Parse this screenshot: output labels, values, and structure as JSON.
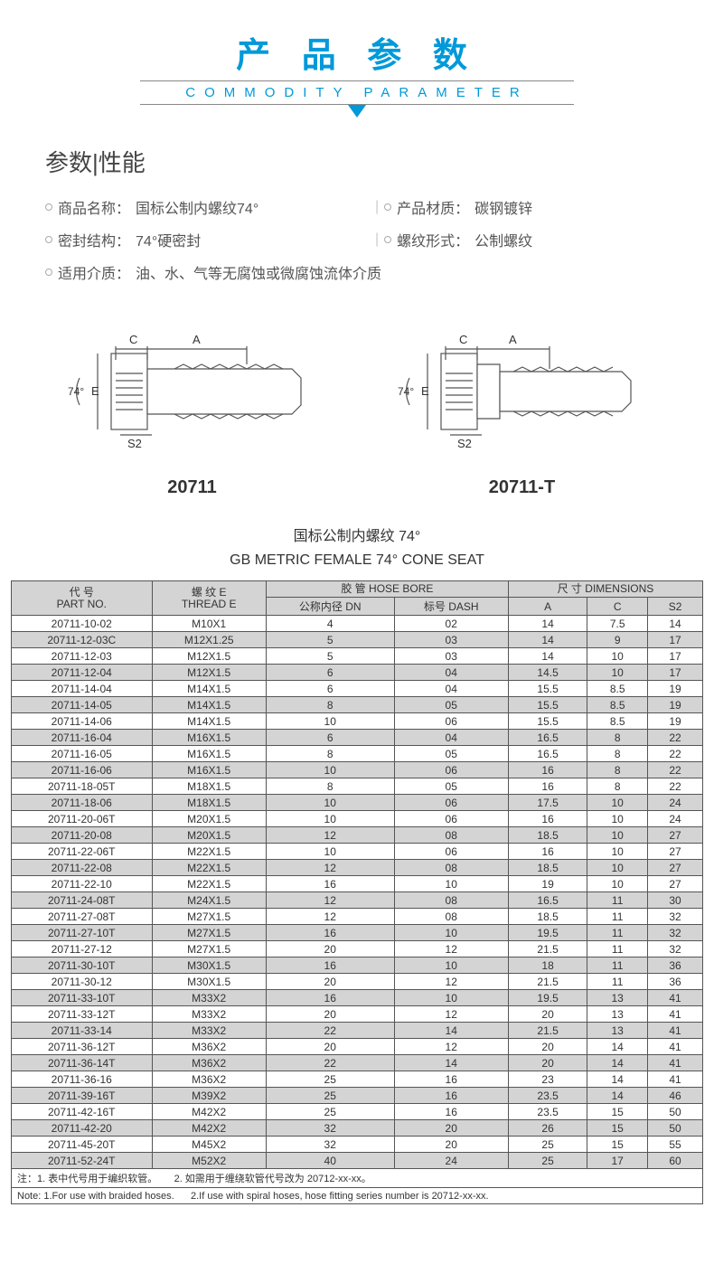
{
  "header": {
    "title_cn": "产 品 参 数",
    "title_en": "COMMODITY PARAMETER"
  },
  "section_title": "参数|性能",
  "specs": {
    "name_label": "商品名称：",
    "name_value": "国标公制内螺纹74°",
    "material_label": "产品材质：",
    "material_value": "碳钢镀锌",
    "seal_label": "密封结构：",
    "seal_value": "74°硬密封",
    "thread_label": "螺纹形式：",
    "thread_value": "公制螺纹",
    "medium_label": "适用介质：",
    "medium_value": " 油、水、气等无腐蚀或微腐蚀流体介质"
  },
  "diagrams": {
    "left_label": "20711",
    "right_label": "20711-T",
    "dim_c": "C",
    "dim_a": "A",
    "dim_e": "E",
    "dim_s2": "S2",
    "angle": "74°"
  },
  "subtitle": {
    "cn": "国标公制内螺纹 74°",
    "en": "GB METRIC FEMALE 74° CONE SEAT"
  },
  "table": {
    "headers": {
      "part_no_cn": "代 号",
      "part_no_en": "PART NO.",
      "thread_cn": "螺 纹 E",
      "thread_en": "THREAD  E",
      "hose_cn": "胶 管",
      "hose_en": "HOSE BORE",
      "dn_cn": "公称内径 DN",
      "dash_cn": "标号 DASH",
      "dim_cn": "尺 寸",
      "dim_en": "DIMENSIONS",
      "a": "A",
      "c": "C",
      "s2": "S2"
    },
    "rows": [
      [
        "20711-10-02",
        "M10X1",
        "4",
        "02",
        "14",
        "7.5",
        "14"
      ],
      [
        "20711-12-03C",
        "M12X1.25",
        "5",
        "03",
        "14",
        "9",
        "17"
      ],
      [
        "20711-12-03",
        "M12X1.5",
        "5",
        "03",
        "14",
        "10",
        "17"
      ],
      [
        "20711-12-04",
        "M12X1.5",
        "6",
        "04",
        "14.5",
        "10",
        "17"
      ],
      [
        "20711-14-04",
        "M14X1.5",
        "6",
        "04",
        "15.5",
        "8.5",
        "19"
      ],
      [
        "20711-14-05",
        "M14X1.5",
        "8",
        "05",
        "15.5",
        "8.5",
        "19"
      ],
      [
        "20711-14-06",
        "M14X1.5",
        "10",
        "06",
        "15.5",
        "8.5",
        "19"
      ],
      [
        "20711-16-04",
        "M16X1.5",
        "6",
        "04",
        "16.5",
        "8",
        "22"
      ],
      [
        "20711-16-05",
        "M16X1.5",
        "8",
        "05",
        "16.5",
        "8",
        "22"
      ],
      [
        "20711-16-06",
        "M16X1.5",
        "10",
        "06",
        "16",
        "8",
        "22"
      ],
      [
        "20711-18-05T",
        "M18X1.5",
        "8",
        "05",
        "16",
        "8",
        "22"
      ],
      [
        "20711-18-06",
        "M18X1.5",
        "10",
        "06",
        "17.5",
        "10",
        "24"
      ],
      [
        "20711-20-06T",
        "M20X1.5",
        "10",
        "06",
        "16",
        "10",
        "24"
      ],
      [
        "20711-20-08",
        "M20X1.5",
        "12",
        "08",
        "18.5",
        "10",
        "27"
      ],
      [
        "20711-22-06T",
        "M22X1.5",
        "10",
        "06",
        "16",
        "10",
        "27"
      ],
      [
        "20711-22-08",
        "M22X1.5",
        "12",
        "08",
        "18.5",
        "10",
        "27"
      ],
      [
        "20711-22-10",
        "M22X1.5",
        "16",
        "10",
        "19",
        "10",
        "27"
      ],
      [
        "20711-24-08T",
        "M24X1.5",
        "12",
        "08",
        "16.5",
        "11",
        "30"
      ],
      [
        "20711-27-08T",
        "M27X1.5",
        "12",
        "08",
        "18.5",
        "11",
        "32"
      ],
      [
        "20711-27-10T",
        "M27X1.5",
        "16",
        "10",
        "19.5",
        "11",
        "32"
      ],
      [
        "20711-27-12",
        "M27X1.5",
        "20",
        "12",
        "21.5",
        "11",
        "32"
      ],
      [
        "20711-30-10T",
        "M30X1.5",
        "16",
        "10",
        "18",
        "11",
        "36"
      ],
      [
        "20711-30-12",
        "M30X1.5",
        "20",
        "12",
        "21.5",
        "11",
        "36"
      ],
      [
        "20711-33-10T",
        "M33X2",
        "16",
        "10",
        "19.5",
        "13",
        "41"
      ],
      [
        "20711-33-12T",
        "M33X2",
        "20",
        "12",
        "20",
        "13",
        "41"
      ],
      [
        "20711-33-14",
        "M33X2",
        "22",
        "14",
        "21.5",
        "13",
        "41"
      ],
      [
        "20711-36-12T",
        "M36X2",
        "20",
        "12",
        "20",
        "14",
        "41"
      ],
      [
        "20711-36-14T",
        "M36X2",
        "22",
        "14",
        "20",
        "14",
        "41"
      ],
      [
        "20711-36-16",
        "M36X2",
        "25",
        "16",
        "23",
        "14",
        "41"
      ],
      [
        "20711-39-16T",
        "M39X2",
        "25",
        "16",
        "23.5",
        "14",
        "46"
      ],
      [
        "20711-42-16T",
        "M42X2",
        "25",
        "16",
        "23.5",
        "15",
        "50"
      ],
      [
        "20711-42-20",
        "M42X2",
        "32",
        "20",
        "26",
        "15",
        "50"
      ],
      [
        "20711-45-20T",
        "M45X2",
        "32",
        "20",
        "25",
        "15",
        "55"
      ],
      [
        "20711-52-24T",
        "M52X2",
        "40",
        "24",
        "25",
        "17",
        "60"
      ]
    ],
    "note_cn_1": "注：1. 表中代号用于编织软管。",
    "note_cn_2": "2. 如需用于缠绕软管代号改为 20712-xx-xx。",
    "note_en_1": "Note: 1.For use with braided hoses.",
    "note_en_2": "2.If use with spiral hoses, hose fitting series number is 20712-xx-xx."
  }
}
